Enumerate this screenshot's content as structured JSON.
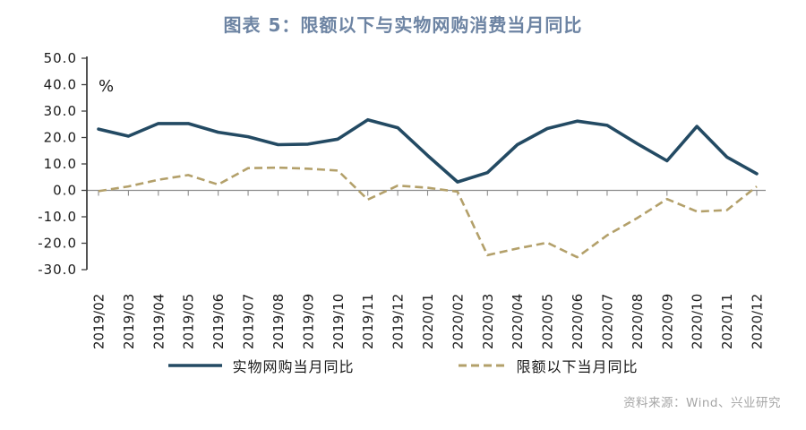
{
  "title": "图表 5：限额以下与实物网购消费当月同比",
  "source": "资料来源：Wind、兴业研究",
  "colors": {
    "title": "#6d84a3",
    "axis": "#404040",
    "zero_line": "#8c8c8c",
    "tick_label": "#1a1a1a",
    "series_solid": "#234a63",
    "series_dashed": "#b3a06a",
    "source_text": "#a6a6a6",
    "background": "#ffffff"
  },
  "chart_data": {
    "type": "line",
    "title": "图表 5：限额以下与实物网购消费当月同比",
    "xlabel": "",
    "ylabel": "%",
    "ylim": [
      -30,
      50
    ],
    "ytick_step": 10,
    "ytick_labels": [
      "50.0",
      "40.0",
      "30.0",
      "20.0",
      "10.0",
      "0.0",
      "-10.0",
      "-20.0",
      "-30.0"
    ],
    "grid": false,
    "legend_position": "bottom",
    "categories": [
      "2019/02",
      "2019/03",
      "2019/04",
      "2019/05",
      "2019/06",
      "2019/07",
      "2019/08",
      "2019/09",
      "2019/10",
      "2019/11",
      "2019/12",
      "2020/01",
      "2020/02",
      "2020/03",
      "2020/04",
      "2020/05",
      "2020/06",
      "2020/07",
      "2020/08",
      "2020/09",
      "2020/10",
      "2020/11",
      "2020/12"
    ],
    "series": [
      {
        "name": "实物网购当月同比",
        "style": "solid",
        "color": "#234a63",
        "values": [
          23.2,
          20.5,
          25.3,
          25.3,
          22.0,
          20.3,
          17.3,
          17.5,
          19.4,
          26.7,
          23.7,
          13.2,
          3.2,
          6.7,
          17.3,
          23.4,
          26.2,
          24.6,
          17.7,
          11.2,
          24.2,
          12.6,
          6.3
        ]
      },
      {
        "name": "限额以下当月同比",
        "style": "dashed",
        "color": "#b3a06a",
        "values": [
          -0.3,
          1.5,
          4.0,
          5.8,
          2.2,
          8.4,
          8.6,
          8.2,
          7.5,
          -3.5,
          1.8,
          1.0,
          -0.5,
          -24.5,
          -22.0,
          -19.8,
          -25.3,
          -17.0,
          -10.5,
          -3.3,
          -8.0,
          -7.5,
          1.5
        ]
      }
    ]
  }
}
